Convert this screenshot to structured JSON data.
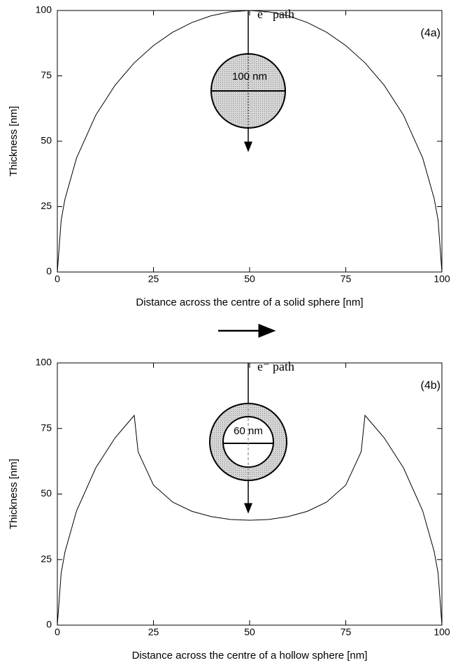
{
  "chart_data": [
    {
      "type": "line",
      "xlabel": "Distance across the centre of a solid sphere [nm]",
      "ylabel": "Thickness [nm]",
      "annotations": [
        "e⁻ path",
        "(4a)",
        "100 nm"
      ],
      "x": [
        0,
        1,
        2,
        5,
        10,
        15,
        20,
        25,
        30,
        35,
        40,
        45,
        50,
        55,
        60,
        65,
        70,
        75,
        80,
        85,
        90,
        95,
        98,
        99,
        100
      ],
      "series": [
        {
          "color": "#000000",
          "values": [
            0,
            19.9,
            28,
            43.6,
            60,
            71.4,
            80,
            86.6,
            91.7,
            95.4,
            98,
            99.5,
            100,
            99.5,
            98,
            95.4,
            91.7,
            86.6,
            80,
            71.4,
            60,
            43.6,
            28,
            19.9,
            0
          ]
        }
      ],
      "xlim": [
        0,
        100
      ],
      "xticks": [
        0,
        25,
        50,
        75,
        100
      ],
      "ylim": [
        0,
        100
      ],
      "yticks": [
        0,
        25,
        50,
        75,
        100
      ],
      "grid": false
    },
    {
      "type": "line",
      "xlabel": "Distance across the centre of a hollow sphere [nm]",
      "ylabel": "Thickness [nm]",
      "annotations": [
        "e⁻ path",
        "(4b)",
        "60 nm"
      ],
      "x": [
        0,
        1,
        2,
        5,
        10,
        15,
        20,
        21,
        25,
        30,
        35,
        40,
        45,
        50,
        55,
        60,
        65,
        70,
        75,
        79,
        80,
        85,
        90,
        95,
        98,
        99,
        100
      ],
      "series": [
        {
          "color": "#000000",
          "values": [
            0,
            19.9,
            28,
            43.6,
            60,
            71.4,
            80,
            66.1,
            53.4,
            46.9,
            43.4,
            41.4,
            40.3,
            40,
            40.3,
            41.4,
            43.4,
            46.9,
            53.4,
            66.1,
            80,
            71.4,
            60,
            43.6,
            28,
            19.9,
            0
          ]
        }
      ],
      "xlim": [
        0,
        100
      ],
      "xticks": [
        0,
        25,
        50,
        75,
        100
      ],
      "ylim": [
        0,
        100
      ],
      "yticks": [
        0,
        25,
        50,
        75,
        100
      ],
      "grid": false
    }
  ]
}
